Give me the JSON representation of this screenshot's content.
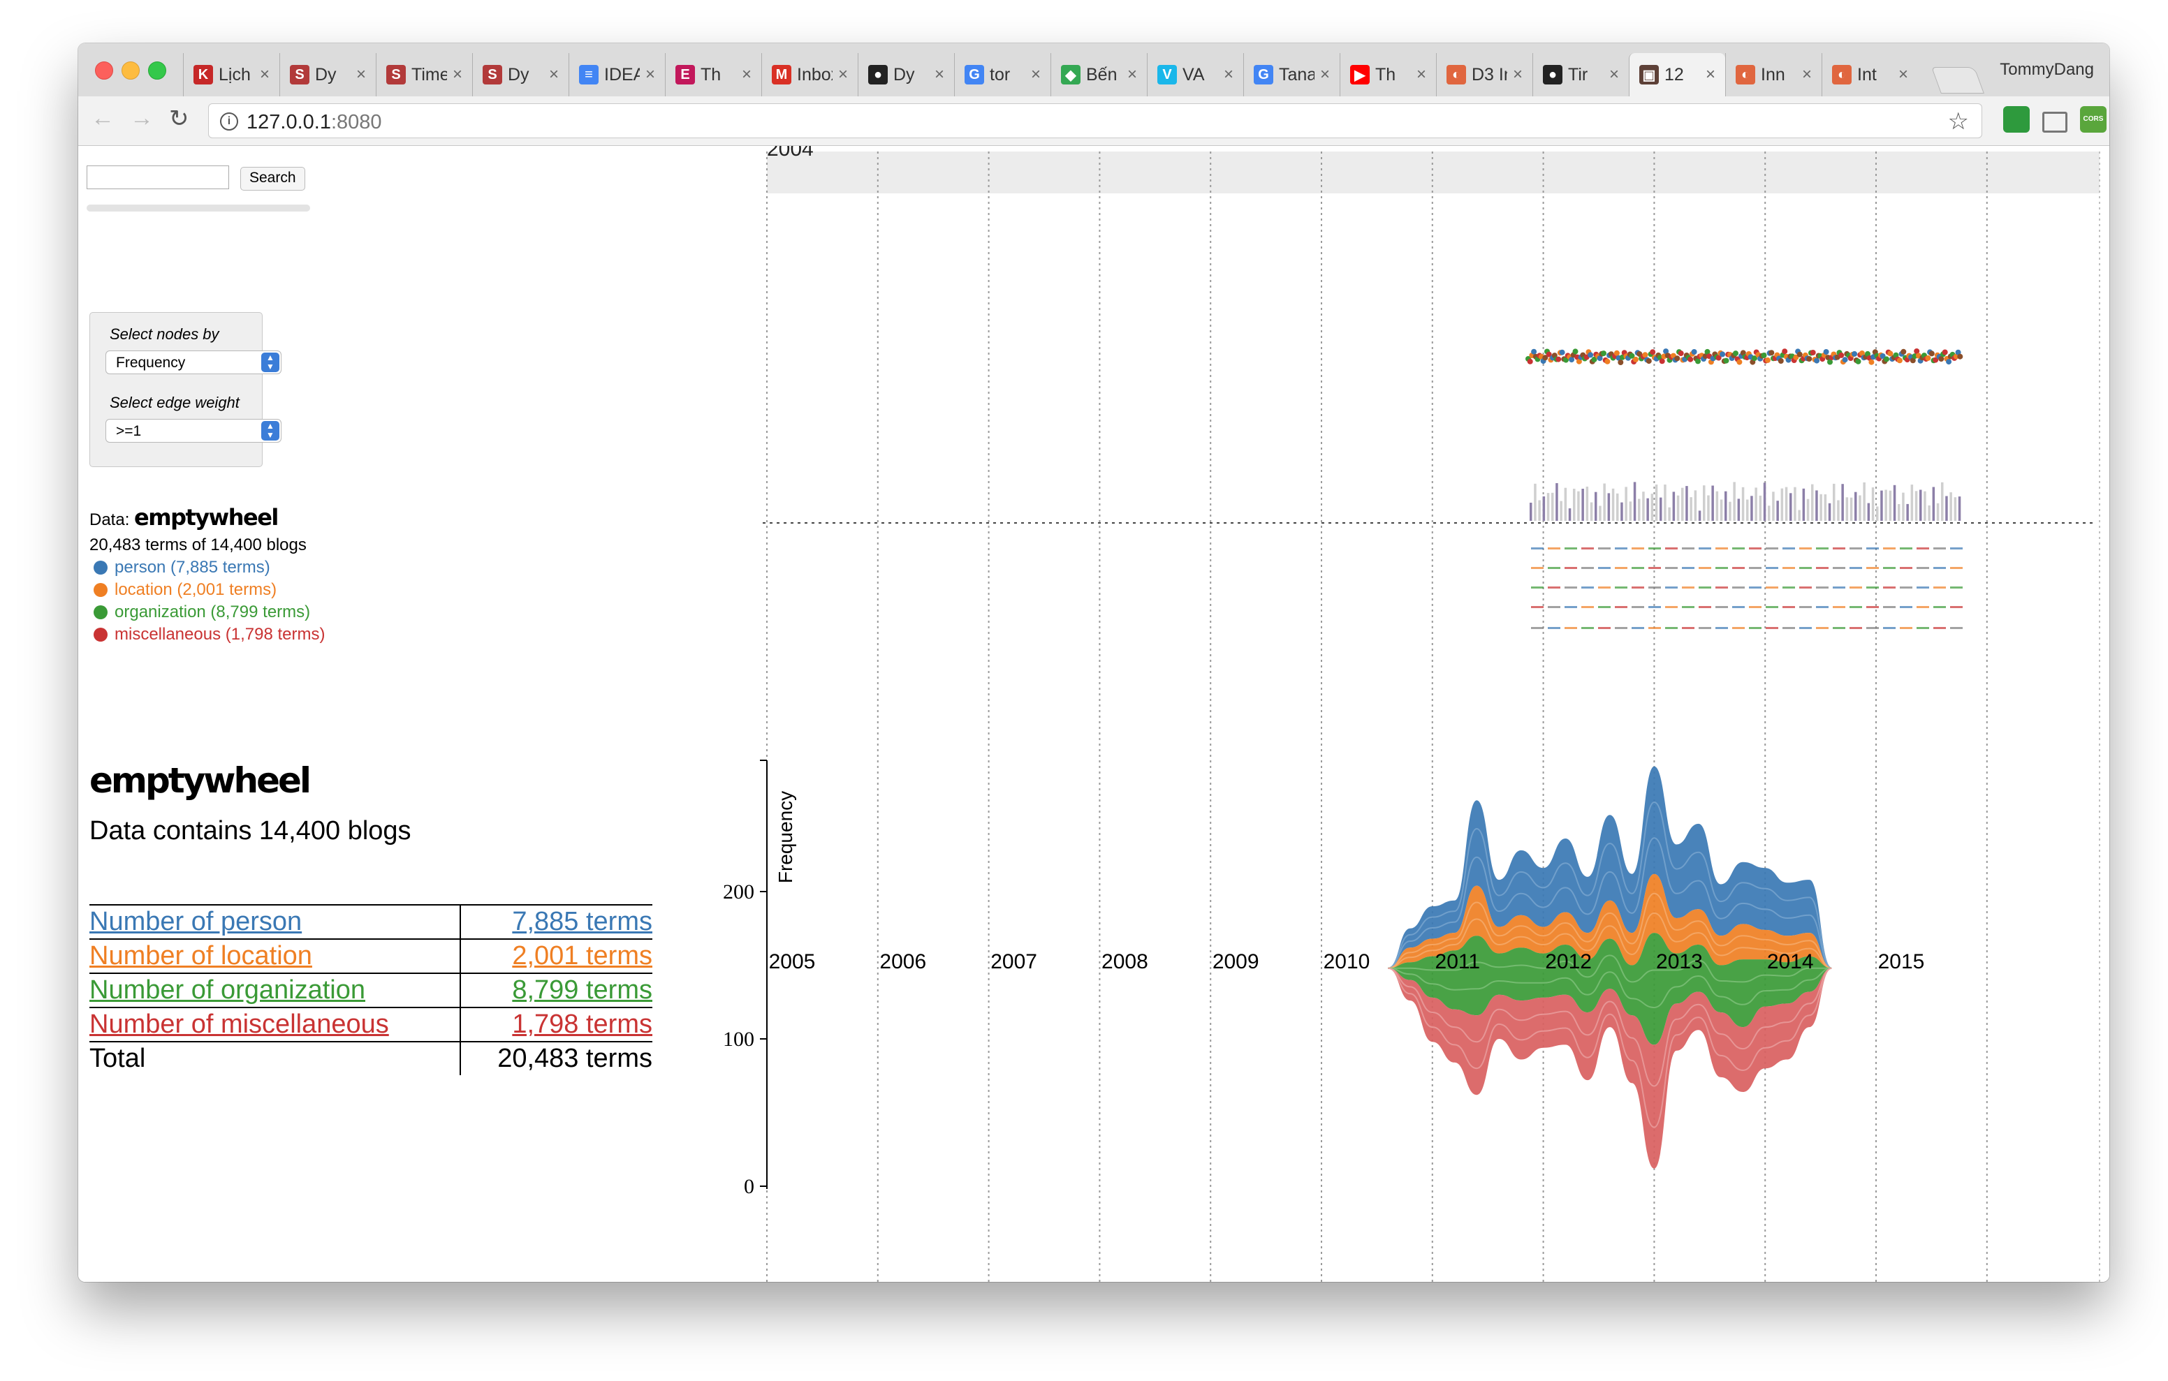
{
  "browser": {
    "tabs": [
      {
        "title": "Lịch",
        "icon": "k-icon",
        "icon_text": "K",
        "color": "#c62828"
      },
      {
        "title": "Dy",
        "icon": "s-icon",
        "icon_text": "S",
        "color": "#b23a3a"
      },
      {
        "title": "Time",
        "icon": "s-icon",
        "icon_text": "S",
        "color": "#b23a3a"
      },
      {
        "title": "Dy",
        "icon": "s-icon",
        "icon_text": "S",
        "color": "#b23a3a"
      },
      {
        "title": "IDEA",
        "icon": "docs-icon",
        "icon_text": "≡",
        "color": "#4285f4"
      },
      {
        "title": "Th",
        "icon": "book-icon",
        "icon_text": "E",
        "color": "#c2185b"
      },
      {
        "title": "Inbox",
        "icon": "gmail-icon",
        "icon_text": "M",
        "color": "#d93025"
      },
      {
        "title": "Dy",
        "icon": "github-icon",
        "icon_text": "●",
        "color": "#222222"
      },
      {
        "title": "tor",
        "icon": "google-icon",
        "icon_text": "G",
        "color": "#4285f4"
      },
      {
        "title": "Bến",
        "icon": "maps-icon",
        "icon_text": "◆",
        "color": "#34a853"
      },
      {
        "title": "VA",
        "icon": "vimeo-icon",
        "icon_text": "V",
        "color": "#1ab7ea"
      },
      {
        "title": "Tanal",
        "icon": "google-icon",
        "icon_text": "G",
        "color": "#4285f4"
      },
      {
        "title": "Th",
        "icon": "youtube-icon",
        "icon_text": "▶",
        "color": "#ff0000"
      },
      {
        "title": "D3 In",
        "icon": "d3-icon",
        "icon_text": "◐",
        "color": "#e0663f"
      },
      {
        "title": "Tir",
        "icon": "github-icon",
        "icon_text": "●",
        "color": "#222222"
      },
      {
        "title": "12",
        "icon": "photo-icon",
        "icon_text": "▣",
        "color": "#5d4037",
        "active": true
      },
      {
        "title": "Inn",
        "icon": "d3-icon",
        "icon_text": "◐",
        "color": "#e0663f"
      },
      {
        "title": "Int",
        "icon": "d3-icon",
        "icon_text": "◐",
        "color": "#e0663f"
      }
    ],
    "profile": "TommyDang",
    "url_host": "127.0.0.1",
    "url_port": ":8080"
  },
  "sidebar": {
    "search_button": "Search",
    "select_nodes_label": "Select nodes by",
    "select_nodes_value": "Frequency",
    "select_edge_label": "Select edge weight",
    "select_edge_value": ">=1",
    "data_prefix": "Data:",
    "data_name": "emptywheel",
    "terms_summary": "20,483 terms of 14,400 blogs",
    "legend": [
      {
        "label": "person (7,885 terms)",
        "color": "#3a78b4"
      },
      {
        "label": "location (2,001 terms)",
        "color": "#ef7f23"
      },
      {
        "label": "organization (8,799 terms)",
        "color": "#3a9a36"
      },
      {
        "label": "miscellaneous (1,798 terms)",
        "color": "#c93333"
      }
    ],
    "title": "emptywheel",
    "contains": "Data contains 14,400 blogs",
    "table": [
      {
        "label": "Number of person",
        "value": "7,885 terms",
        "color": "#3a78b4"
      },
      {
        "label": "Number of location",
        "value": "2,001 terms",
        "color": "#ef7f23"
      },
      {
        "label": "Number of organization",
        "value": "8,799 terms",
        "color": "#3a9a36"
      },
      {
        "label": "Number of miscellaneous",
        "value": "1,798 terms",
        "color": "#c93333"
      },
      {
        "label": "Total",
        "value": "20,483 terms",
        "color": "#000000"
      }
    ]
  },
  "chart_data": {
    "type": "area",
    "top_year_label": "2004",
    "years": [
      "2005",
      "2006",
      "2007",
      "2008",
      "2009",
      "2010",
      "2011",
      "2012",
      "2013",
      "2014",
      "2015"
    ],
    "ylabel": "Frequency",
    "yticks": [
      0,
      100,
      200
    ],
    "ylim": [
      0,
      285
    ],
    "series_names": [
      "person",
      "location",
      "organization",
      "miscellaneous"
    ],
    "series_colors": [
      "#3a78b4",
      "#ef7f23",
      "#3a9a36",
      "#d95f5f"
    ],
    "x": [
      2010.6,
      2010.8,
      2011.0,
      2011.2,
      2011.4,
      2011.6,
      2011.8,
      2012.0,
      2012.2,
      2012.4,
      2012.6,
      2012.8,
      2013.0,
      2013.2,
      2013.4,
      2013.6,
      2013.8,
      2014.0,
      2014.2,
      2014.4,
      2014.6
    ],
    "top": [
      148,
      175,
      190,
      194,
      262,
      208,
      228,
      216,
      236,
      210,
      252,
      212,
      285,
      232,
      246,
      205,
      220,
      216,
      206,
      208,
      148
    ],
    "bottom": [
      148,
      126,
      98,
      84,
      62,
      100,
      86,
      94,
      96,
      72,
      108,
      70,
      12,
      92,
      106,
      74,
      64,
      80,
      86,
      108,
      148
    ],
    "boundary1": [
      148,
      162,
      168,
      172,
      204,
      176,
      184,
      176,
      186,
      172,
      194,
      172,
      212,
      182,
      188,
      170,
      178,
      174,
      170,
      172,
      148
    ],
    "boundary2": [
      148,
      152,
      156,
      160,
      170,
      158,
      162,
      158,
      164,
      154,
      168,
      150,
      172,
      158,
      164,
      150,
      154,
      154,
      152,
      156,
      148
    ],
    "boundary3": [
      148,
      140,
      128,
      120,
      116,
      130,
      126,
      128,
      130,
      118,
      134,
      116,
      96,
      124,
      132,
      118,
      108,
      122,
      124,
      132,
      148
    ]
  }
}
